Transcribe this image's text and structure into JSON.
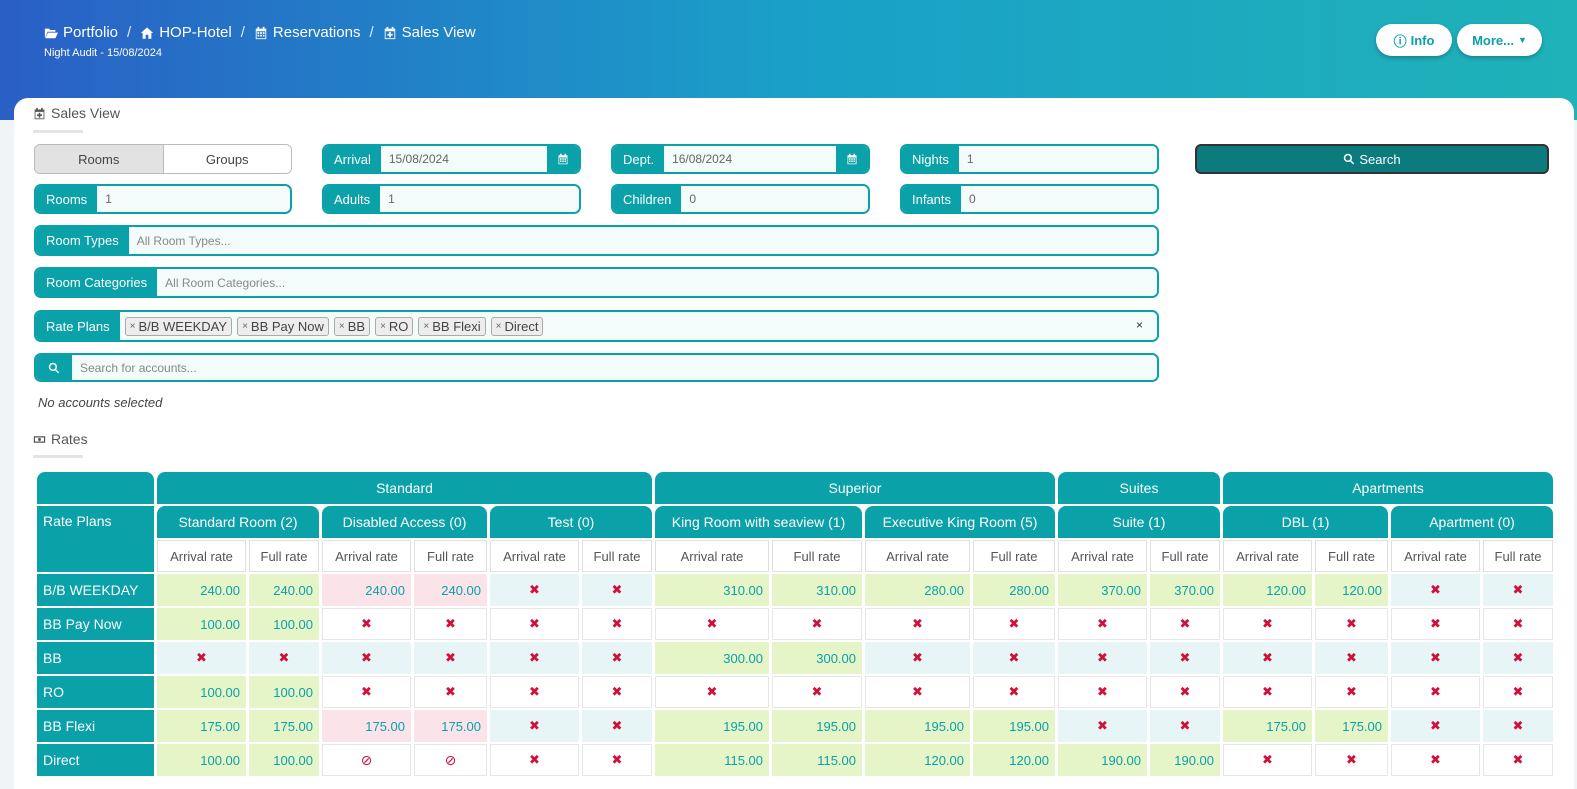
{
  "breadcrumb": [
    {
      "label": "Portfolio",
      "icon": "folder-open-icon"
    },
    {
      "label": "HOP-Hotel",
      "icon": "home-icon"
    },
    {
      "label": "Reservations",
      "icon": "calendar-icon"
    },
    {
      "label": "Sales View",
      "icon": "calendar-plus-icon"
    }
  ],
  "subtitle": "Night Audit - 15/08/2024",
  "top_buttons": {
    "info": "Info",
    "more": "More..."
  },
  "sales_view": {
    "title": "Sales View",
    "toggle": {
      "rooms": "Rooms",
      "groups": "Groups"
    },
    "arrival": {
      "label": "Arrival",
      "value": "15/08/2024"
    },
    "dept": {
      "label": "Dept.",
      "value": "16/08/2024"
    },
    "nights": {
      "label": "Nights",
      "value": "1"
    },
    "search_button": "Search",
    "rooms": {
      "label": "Rooms",
      "value": "1"
    },
    "adults": {
      "label": "Adults",
      "value": "1"
    },
    "children": {
      "label": "Children",
      "value": "0"
    },
    "infants": {
      "label": "Infants",
      "value": "0"
    },
    "room_types": {
      "label": "Room Types",
      "placeholder": "All Room Types..."
    },
    "room_categories": {
      "label": "Room Categories",
      "placeholder": "All Room Categories..."
    },
    "rate_plans": {
      "label": "Rate Plans",
      "chips": [
        "B/B WEEKDAY",
        "BB Pay Now",
        "BB",
        "RO",
        "BB Flexi",
        "Direct"
      ],
      "clear": "×"
    },
    "accounts": {
      "placeholder": "Search for accounts...",
      "none": "No accounts selected"
    }
  },
  "rates": {
    "title": "Rates",
    "corner": "Rate Plans",
    "groups": [
      {
        "name": "Standard",
        "span": 6
      },
      {
        "name": "Superior",
        "span": 4
      },
      {
        "name": "Suites",
        "span": 2
      },
      {
        "name": "Apartments",
        "span": 4
      }
    ],
    "rooms": [
      "Standard Room (2)",
      "Disabled Access (0)",
      "Test (0)",
      "King Room with seaview (1)",
      "Executive King Room (5)",
      "Suite (1)",
      "DBL (1)",
      "Apartment (0)"
    ],
    "sub_headers": [
      "Arrival rate",
      "Full rate"
    ],
    "rows": [
      {
        "name": "B/B WEEKDAY",
        "cells": [
          [
            "240.00",
            "g"
          ],
          [
            "240.00",
            "g"
          ],
          [
            "240.00",
            "p"
          ],
          [
            "240.00",
            "p"
          ],
          [
            "x",
            "b"
          ],
          [
            "x",
            "b"
          ],
          [
            "310.00",
            "g"
          ],
          [
            "310.00",
            "g"
          ],
          [
            "280.00",
            "g"
          ],
          [
            "280.00",
            "g"
          ],
          [
            "370.00",
            "g"
          ],
          [
            "370.00",
            "g"
          ],
          [
            "120.00",
            "g"
          ],
          [
            "120.00",
            "g"
          ],
          [
            "x",
            "b"
          ],
          [
            "x",
            "b"
          ]
        ]
      },
      {
        "name": "BB Pay Now",
        "cells": [
          [
            "100.00",
            "g"
          ],
          [
            "100.00",
            "g"
          ],
          [
            "x",
            "w"
          ],
          [
            "x",
            "w"
          ],
          [
            "x",
            "w"
          ],
          [
            "x",
            "w"
          ],
          [
            "x",
            "w"
          ],
          [
            "x",
            "w"
          ],
          [
            "x",
            "w"
          ],
          [
            "x",
            "w"
          ],
          [
            "x",
            "w"
          ],
          [
            "x",
            "w"
          ],
          [
            "x",
            "w"
          ],
          [
            "x",
            "w"
          ],
          [
            "x",
            "w"
          ],
          [
            "x",
            "w"
          ]
        ]
      },
      {
        "name": "BB",
        "cells": [
          [
            "x",
            "b"
          ],
          [
            "x",
            "b"
          ],
          [
            "x",
            "b"
          ],
          [
            "x",
            "b"
          ],
          [
            "x",
            "b"
          ],
          [
            "x",
            "b"
          ],
          [
            "300.00",
            "g"
          ],
          [
            "300.00",
            "g"
          ],
          [
            "x",
            "b"
          ],
          [
            "x",
            "b"
          ],
          [
            "x",
            "b"
          ],
          [
            "x",
            "b"
          ],
          [
            "x",
            "b"
          ],
          [
            "x",
            "b"
          ],
          [
            "x",
            "b"
          ],
          [
            "x",
            "b"
          ]
        ]
      },
      {
        "name": "RO",
        "cells": [
          [
            "100.00",
            "g"
          ],
          [
            "100.00",
            "g"
          ],
          [
            "x",
            "w"
          ],
          [
            "x",
            "w"
          ],
          [
            "x",
            "w"
          ],
          [
            "x",
            "w"
          ],
          [
            "x",
            "w"
          ],
          [
            "x",
            "w"
          ],
          [
            "x",
            "w"
          ],
          [
            "x",
            "w"
          ],
          [
            "x",
            "w"
          ],
          [
            "x",
            "w"
          ],
          [
            "x",
            "w"
          ],
          [
            "x",
            "w"
          ],
          [
            "x",
            "w"
          ],
          [
            "x",
            "w"
          ]
        ]
      },
      {
        "name": "BB Flexi",
        "cells": [
          [
            "175.00",
            "g"
          ],
          [
            "175.00",
            "g"
          ],
          [
            "175.00",
            "p"
          ],
          [
            "175.00",
            "p"
          ],
          [
            "x",
            "b"
          ],
          [
            "x",
            "b"
          ],
          [
            "195.00",
            "g"
          ],
          [
            "195.00",
            "g"
          ],
          [
            "195.00",
            "g"
          ],
          [
            "195.00",
            "g"
          ],
          [
            "x",
            "b"
          ],
          [
            "x",
            "b"
          ],
          [
            "175.00",
            "g"
          ],
          [
            "175.00",
            "g"
          ],
          [
            "x",
            "b"
          ],
          [
            "x",
            "b"
          ]
        ]
      },
      {
        "name": "Direct",
        "cells": [
          [
            "100.00",
            "g"
          ],
          [
            "100.00",
            "g"
          ],
          [
            "ban",
            "w"
          ],
          [
            "ban",
            "w"
          ],
          [
            "x",
            "w"
          ],
          [
            "x",
            "w"
          ],
          [
            "115.00",
            "g"
          ],
          [
            "115.00",
            "g"
          ],
          [
            "120.00",
            "g"
          ],
          [
            "120.00",
            "g"
          ],
          [
            "190.00",
            "g"
          ],
          [
            "190.00",
            "g"
          ],
          [
            "x",
            "w"
          ],
          [
            "x",
            "w"
          ],
          [
            "x",
            "w"
          ],
          [
            "x",
            "w"
          ]
        ]
      }
    ]
  }
}
